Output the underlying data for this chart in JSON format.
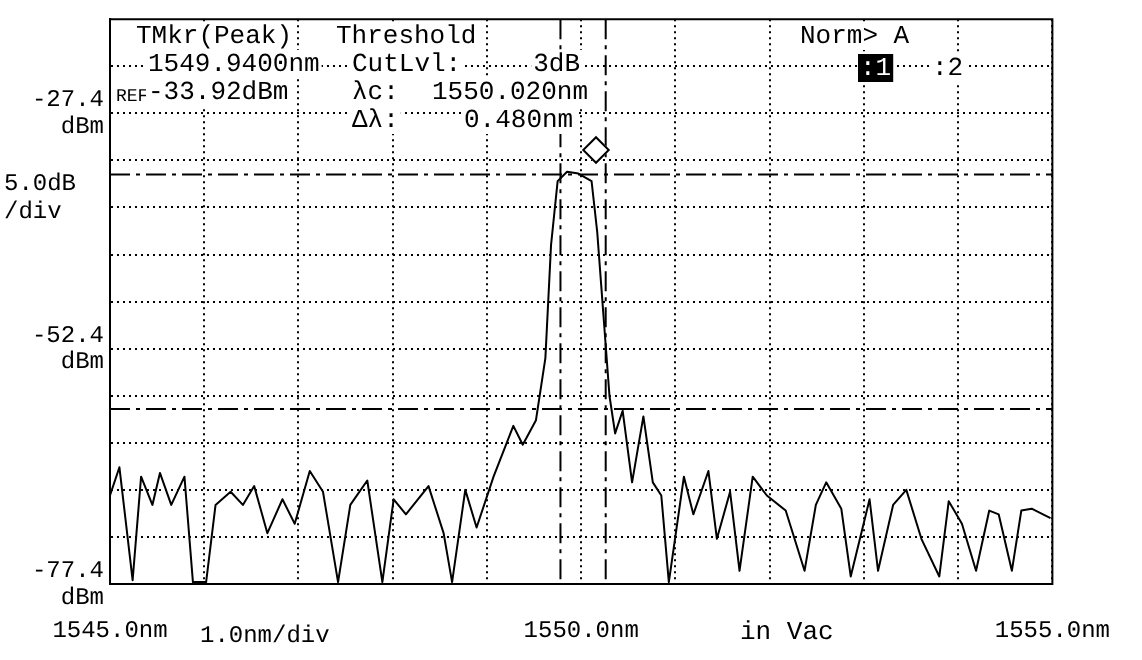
{
  "chart_data": {
    "type": "line",
    "ylabel": "5.0dB /div",
    "annotations": [
      "TMkr(Peak)",
      "1549.9400nm",
      "REF",
      "-33.92dBm",
      "Threshold",
      "CutLvl:",
      "3dB",
      "λc:",
      "1550.020nm",
      "Δλ:",
      "0.480nm",
      "Norm> A",
      ":1",
      ":2",
      "in Vac"
    ],
    "xlabel": "1.0nm/div",
    "series": [
      {
        "color": "#000000",
        "x": [
          1545.0,
          1545.1,
          1545.24,
          1545.33,
          1545.45,
          1545.53,
          1545.65,
          1545.79,
          1545.88,
          1546.02,
          1546.12,
          1546.28,
          1546.41,
          1546.53,
          1546.67,
          1546.83,
          1546.96,
          1547.12,
          1547.26,
          1547.42,
          1547.55,
          1547.73,
          1547.89,
          1548.01,
          1548.14,
          1548.38,
          1548.54,
          1548.63,
          1548.77,
          1548.89,
          1549.07,
          1549.28,
          1549.38,
          1549.52,
          1549.62,
          1549.68,
          1549.75,
          1549.85,
          1549.97,
          1550.11,
          1550.17,
          1550.3,
          1550.36,
          1550.44,
          1550.54,
          1550.66,
          1550.76,
          1550.85,
          1550.93,
          1551.09,
          1551.19,
          1551.35,
          1551.44,
          1551.58,
          1551.68,
          1551.82,
          1551.97,
          1552.17,
          1552.37,
          1552.49,
          1552.6,
          1552.76,
          1552.86,
          1553.06,
          1553.15,
          1553.31,
          1553.45,
          1553.61,
          1553.8,
          1553.9,
          1554.04,
          1554.19,
          1554.33,
          1554.43,
          1554.57,
          1554.67,
          1554.78,
          1554.98
        ],
        "values": [
          -68.0,
          -65.0,
          -77.0,
          -66.0,
          -69.0,
          -65.6,
          -69.0,
          -66.0,
          -77.2,
          -77.2,
          -69.0,
          -67.6,
          -69.0,
          -67.0,
          -72.0,
          -68.4,
          -71.0,
          -65.4,
          -67.6,
          -77.2,
          -69.0,
          -66.4,
          -77.2,
          -68.4,
          -70.0,
          -67.0,
          -72.0,
          -77.2,
          -67.4,
          -71.4,
          -66.0,
          -60.6,
          -62.6,
          -60.0,
          -53.4,
          -41.4,
          -34.6,
          -33.6,
          -33.8,
          -34.6,
          -40.0,
          -57.4,
          -61.4,
          -59.0,
          -66.6,
          -59.6,
          -66.6,
          -68.0,
          -77.2,
          -66.0,
          -70.0,
          -65.4,
          -72.6,
          -67.6,
          -76.0,
          -66.0,
          -68.0,
          -69.6,
          -76.0,
          -69.0,
          -66.6,
          -69.4,
          -76.6,
          -68.4,
          -76.0,
          -69.0,
          -67.4,
          -72.6,
          -76.6,
          -68.6,
          -71.0,
          -76.0,
          -69.6,
          -70.0,
          -76.0,
          -69.6,
          -69.4,
          -70.4
        ]
      }
    ],
    "xlim": [
      1545,
      1555
    ],
    "xticks": [
      {
        "value": 1545,
        "label": "1545.0nm"
      },
      {
        "value": 1546,
        "label": null
      },
      {
        "value": 1547,
        "label": null
      },
      {
        "value": 1548,
        "label": null
      },
      {
        "value": 1549,
        "label": null
      },
      {
        "value": 1550,
        "label": "1550.0nm"
      },
      {
        "value": 1551,
        "label": null
      },
      {
        "value": 1552,
        "label": null
      },
      {
        "value": 1553,
        "label": null
      },
      {
        "value": 1554,
        "label": null
      },
      {
        "value": 1555,
        "label": "1555.0nm"
      }
    ],
    "ylim": [
      -77.4,
      -17.4
    ],
    "yticks": [
      {
        "value": -77.4,
        "label": "-77.4 dBm"
      },
      {
        "value": -72.4,
        "label": null
      },
      {
        "value": -67.4,
        "label": null
      },
      {
        "value": -62.4,
        "label": null
      },
      {
        "value": -57.4,
        "label": null
      },
      {
        "value": -52.4,
        "label": "-52.4 dBm"
      },
      {
        "value": -47.4,
        "label": null
      },
      {
        "value": -42.4,
        "label": null
      },
      {
        "value": -37.4,
        "label": null
      },
      {
        "value": -32.4,
        "label": null
      },
      {
        "value": -27.4,
        "label": "-27.4 dBm"
      },
      {
        "value": -22.4,
        "label": null
      }
    ],
    "ref_lines": [
      {
        "axis": "x",
        "value": 1549.78,
        "line_style": "dashed"
      },
      {
        "axis": "x",
        "value": 1550.26,
        "line_style": "dashed"
      },
      {
        "axis": "y",
        "value": -33.9,
        "line_style": "dashed"
      },
      {
        "axis": "y",
        "value": -58.8,
        "line_style": "dashed"
      }
    ],
    "grid": true
  }
}
